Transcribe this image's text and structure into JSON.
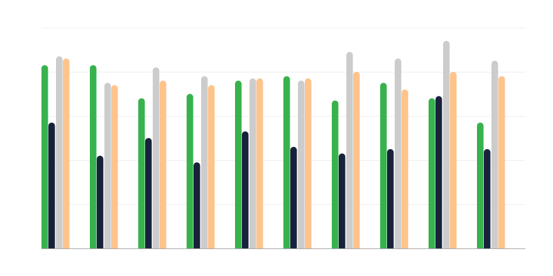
{
  "chart_data": {
    "type": "bar",
    "title": "",
    "xlabel": "",
    "ylabel": "",
    "categories": [
      "",
      "",
      "",
      "",
      "",
      "",
      "",
      "",
      "",
      ""
    ],
    "ylim": [
      0,
      100
    ],
    "y_gridlines": [
      20,
      40,
      60,
      80,
      100
    ],
    "grid": true,
    "legend": "none",
    "series": [
      {
        "color": "#37b24d",
        "values": [
          83,
          83,
          68,
          70,
          76,
          78,
          67,
          75,
          68,
          57
        ]
      },
      {
        "color": "#18223b",
        "values": [
          57,
          42,
          50,
          39,
          53,
          46,
          43,
          45,
          69,
          45
        ]
      },
      {
        "color": "#cccccc",
        "values": [
          87,
          75,
          82,
          78,
          77,
          76,
          89,
          86,
          94,
          85
        ]
      },
      {
        "color": "#ffc38c",
        "values": [
          86,
          74,
          76,
          74,
          77,
          77,
          80,
          72,
          80,
          78
        ]
      }
    ]
  }
}
